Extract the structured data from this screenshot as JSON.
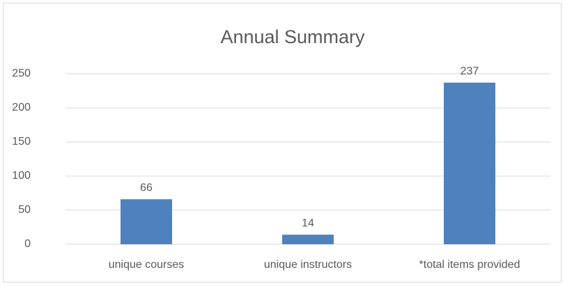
{
  "chart_data": {
    "type": "bar",
    "title": "Annual Summary",
    "categories": [
      "unique courses",
      "unique instructors",
      "*total items provided"
    ],
    "values": [
      66,
      14,
      237
    ],
    "color": "#4f81bd",
    "ylim": [
      0,
      250
    ],
    "yticks": [
      0,
      50,
      100,
      150,
      200,
      250
    ],
    "grid": true,
    "data_labels": true
  }
}
